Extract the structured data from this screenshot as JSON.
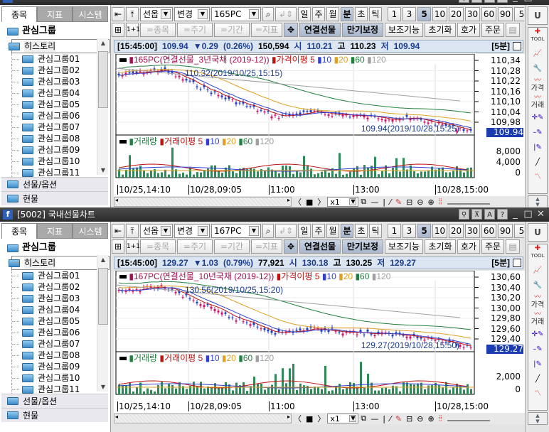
{
  "shared": {
    "tabs": [
      "종목",
      "지표",
      "시스템"
    ],
    "tree_header": "관심그룹",
    "tree_items": [
      "히스토리",
      "관심그룹01",
      "관심그룹02",
      "관심그룹03",
      "관심그룹04",
      "관심그룹05",
      "관심그룹06",
      "관심그룹07",
      "관심그룹08",
      "관심그룹09",
      "관심그룹10",
      "관심그룹11"
    ],
    "categories": [
      "선물/옵션",
      "현물"
    ],
    "market_select": "선옵",
    "change_select": "변경",
    "period_buttons": [
      "일",
      "주",
      "월",
      "분",
      "초",
      "틱"
    ],
    "period_active": "분",
    "interval_buttons": [
      "1",
      "3",
      "5",
      "10",
      "20",
      "30",
      "60",
      "90",
      "5"
    ],
    "interval_active": "5",
    "toolbar2": {
      "one_plus_one": "1+1",
      "eq_item": "=종목",
      "eq_cycle": "=주기",
      "eq_period": "=기간",
      "eq_indicator": "=지표",
      "linked_futures": "연결선물",
      "expiry_adjust": "만기보정",
      "aux": "보조기능",
      "reset": "초기화",
      "quote": "호가",
      "order": "주문"
    },
    "info_labels": {
      "open": "시",
      "high": "고",
      "low": "저"
    },
    "ma_label": "가격이평",
    "ma_periods": [
      "5",
      "10",
      "20",
      "60",
      "120"
    ],
    "volume_label": "거래량",
    "volume_ma_label": "거래이평",
    "time_labels": [
      "10/25,14:10",
      "10/28,09:05",
      "11:00",
      "13:00",
      "10/28,15:00"
    ],
    "zoom_select": "x1",
    "right_tools": {
      "u": "U",
      "tool": "TOOL",
      "price": "가격",
      "volume": "거래"
    },
    "colors": {
      "up": "#d0106a",
      "down": "#1a3cc0",
      "ma5": "#c01010",
      "ma10": "#3040d0",
      "ma20": "#e0a020",
      "ma60": "#208040",
      "ma120": "#a0a0a0",
      "volume": "#2e8b57",
      "last_price_box": "#1a3cb0"
    }
  },
  "windows": [
    {
      "title": "",
      "code": "165PC",
      "info": {
        "time": "[15:45:00]",
        "price": "109.94",
        "change": "▼0.29",
        "pct": "(0.26%)",
        "volume": "150,594",
        "open": "110.21",
        "high": "110.23",
        "low": "109.94",
        "period": "[5분]"
      },
      "legend": "165PC(연결선물_3년국채 (2019-12))",
      "high_note": "110.32(2019/10/25,15:15)",
      "last_note": "109.94(2019/10/28,15:25)",
      "y_ticks": [
        "110,34",
        "110,28",
        "110,22",
        "110,16",
        "110,10",
        "110,04",
        "109,98"
      ],
      "last_price": "109.94",
      "vol_ticks": [
        "8,000",
        "4,000",
        "0"
      ]
    },
    {
      "title": "[5002] 국내선물차트",
      "code": "167PC",
      "info": {
        "time": "[15:45:00]",
        "price": "129.27",
        "change": "▼1.03",
        "pct": "(0.79%)",
        "volume": "77,921",
        "open": "130.18",
        "high": "130.25",
        "low": "129.27",
        "period": "[5분]"
      },
      "legend": "167PC(연결선물_10년국채 (2019-12))",
      "high_note": "130.56(2019/10/25,15:20)",
      "last_note": "129.27(2019/10/28,15:50)",
      "y_ticks": [
        "130,60",
        "130,40",
        "130,20",
        "130,00",
        "129,80",
        "129,60",
        "129,40"
      ],
      "last_price": "129.27",
      "vol_ticks": [
        "2,000",
        "0"
      ]
    }
  ]
}
